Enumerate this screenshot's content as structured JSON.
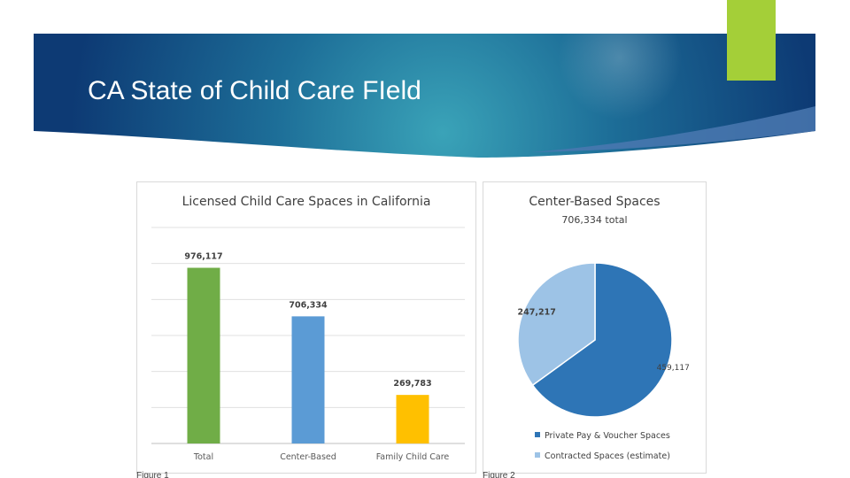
{
  "slide": {
    "title": "CA State of Child Care FIeld",
    "colors": {
      "header_dark": "#0d3a74",
      "header_mid": "#1d6e98",
      "header_light": "#3aa3b8",
      "accent_green": "#a4cf38"
    }
  },
  "captions": {
    "fig1": "Figure 1",
    "fig2": "Figure 2"
  },
  "chart_data": [
    {
      "type": "bar",
      "title": "Licensed Child Care Spaces in California",
      "categories": [
        "Total",
        "Center-Based",
        "Family Child Care"
      ],
      "values": [
        976117,
        706334,
        269783
      ],
      "value_labels": [
        "976,117",
        "706,334",
        "269,783"
      ],
      "colors": [
        "#70ad47",
        "#5b9bd5",
        "#ffc000"
      ],
      "ylim": [
        0,
        1200000
      ],
      "grid": true,
      "xlabel": "",
      "ylabel": ""
    },
    {
      "type": "pie",
      "title": "Center-Based Spaces",
      "subtitle": "706,334 total",
      "labels": [
        "Private Pay & Voucher Spaces",
        "Contracted Spaces (estimate)"
      ],
      "values": [
        459117,
        247217
      ],
      "value_labels": [
        "459,117",
        "247,217"
      ],
      "colors": [
        "#2e75b6",
        "#9dc3e6"
      ],
      "legend": "bottom"
    }
  ]
}
